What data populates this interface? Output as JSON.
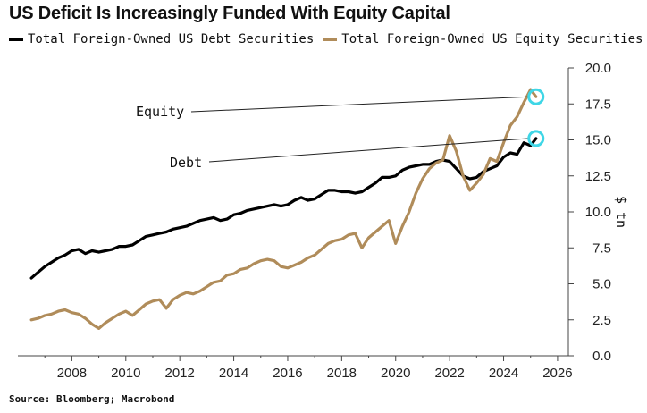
{
  "title": "US Deficit Is Increasingly Funded With Equity Capital",
  "source": "Source: Bloomberg; Macrobond",
  "colors": {
    "debt": "#000000",
    "equity": "#b08c5a",
    "marker": "#3fd6e6"
  },
  "chart_data": {
    "type": "line",
    "title": "US Deficit Is Increasingly Funded With Equity Capital",
    "xlabel": "",
    "ylabel": "$ tn",
    "xlim": [
      2006.0,
      2026.4
    ],
    "ylim": [
      0,
      20
    ],
    "x_ticks": [
      "2008",
      "2010",
      "2012",
      "2014",
      "2016",
      "2018",
      "2020",
      "2022",
      "2024",
      "2026"
    ],
    "y_ticks": [
      "0.0",
      "2.5",
      "5.0",
      "7.5",
      "10.0",
      "12.5",
      "15.0",
      "17.5",
      "20.0"
    ],
    "grid": false,
    "legend_position": "top",
    "annotations": [
      "Equity",
      "Debt"
    ],
    "series": [
      {
        "name": "Total Foreign-Owned US Debt Securities",
        "color": "#000000",
        "points": [
          [
            2006.5,
            5.4
          ],
          [
            2006.75,
            5.8
          ],
          [
            2007.0,
            6.2
          ],
          [
            2007.25,
            6.5
          ],
          [
            2007.5,
            6.8
          ],
          [
            2007.75,
            7.0
          ],
          [
            2008.0,
            7.3
          ],
          [
            2008.25,
            7.4
          ],
          [
            2008.5,
            7.1
          ],
          [
            2008.75,
            7.3
          ],
          [
            2009.0,
            7.2
          ],
          [
            2009.25,
            7.3
          ],
          [
            2009.5,
            7.4
          ],
          [
            2009.75,
            7.6
          ],
          [
            2010.0,
            7.6
          ],
          [
            2010.25,
            7.7
          ],
          [
            2010.5,
            8.0
          ],
          [
            2010.75,
            8.3
          ],
          [
            2011.0,
            8.4
          ],
          [
            2011.25,
            8.5
          ],
          [
            2011.5,
            8.6
          ],
          [
            2011.75,
            8.8
          ],
          [
            2012.0,
            8.9
          ],
          [
            2012.25,
            9.0
          ],
          [
            2012.5,
            9.2
          ],
          [
            2012.75,
            9.4
          ],
          [
            2013.0,
            9.5
          ],
          [
            2013.25,
            9.6
          ],
          [
            2013.5,
            9.4
          ],
          [
            2013.75,
            9.5
          ],
          [
            2014.0,
            9.8
          ],
          [
            2014.25,
            9.9
          ],
          [
            2014.5,
            10.1
          ],
          [
            2014.75,
            10.2
          ],
          [
            2015.0,
            10.3
          ],
          [
            2015.25,
            10.4
          ],
          [
            2015.5,
            10.5
          ],
          [
            2015.75,
            10.4
          ],
          [
            2016.0,
            10.5
          ],
          [
            2016.25,
            10.8
          ],
          [
            2016.5,
            11.0
          ],
          [
            2016.75,
            10.8
          ],
          [
            2017.0,
            10.9
          ],
          [
            2017.25,
            11.2
          ],
          [
            2017.5,
            11.5
          ],
          [
            2017.75,
            11.5
          ],
          [
            2018.0,
            11.4
          ],
          [
            2018.25,
            11.4
          ],
          [
            2018.5,
            11.3
          ],
          [
            2018.75,
            11.4
          ],
          [
            2019.0,
            11.7
          ],
          [
            2019.25,
            12.0
          ],
          [
            2019.5,
            12.4
          ],
          [
            2019.75,
            12.4
          ],
          [
            2020.0,
            12.5
          ],
          [
            2020.25,
            12.9
          ],
          [
            2020.5,
            13.1
          ],
          [
            2020.75,
            13.2
          ],
          [
            2021.0,
            13.3
          ],
          [
            2021.25,
            13.3
          ],
          [
            2021.5,
            13.5
          ],
          [
            2021.75,
            13.6
          ],
          [
            2022.0,
            13.5
          ],
          [
            2022.25,
            13.0
          ],
          [
            2022.5,
            12.5
          ],
          [
            2022.75,
            12.3
          ],
          [
            2023.0,
            12.4
          ],
          [
            2023.25,
            12.8
          ],
          [
            2023.5,
            13.0
          ],
          [
            2023.75,
            13.2
          ],
          [
            2024.0,
            13.8
          ],
          [
            2024.25,
            14.1
          ],
          [
            2024.5,
            14.0
          ],
          [
            2024.75,
            14.8
          ],
          [
            2025.0,
            14.6
          ],
          [
            2025.2,
            15.1
          ]
        ]
      },
      {
        "name": "Total Foreign-Owned US Equity Securities",
        "color": "#b08c5a",
        "points": [
          [
            2006.5,
            2.5
          ],
          [
            2006.75,
            2.6
          ],
          [
            2007.0,
            2.8
          ],
          [
            2007.25,
            2.9
          ],
          [
            2007.5,
            3.1
          ],
          [
            2007.75,
            3.2
          ],
          [
            2008.0,
            3.0
          ],
          [
            2008.25,
            2.9
          ],
          [
            2008.5,
            2.6
          ],
          [
            2008.75,
            2.2
          ],
          [
            2009.0,
            1.9
          ],
          [
            2009.25,
            2.3
          ],
          [
            2009.5,
            2.6
          ],
          [
            2009.75,
            2.9
          ],
          [
            2010.0,
            3.1
          ],
          [
            2010.25,
            2.8
          ],
          [
            2010.5,
            3.2
          ],
          [
            2010.75,
            3.6
          ],
          [
            2011.0,
            3.8
          ],
          [
            2011.25,
            3.9
          ],
          [
            2011.5,
            3.3
          ],
          [
            2011.75,
            3.9
          ],
          [
            2012.0,
            4.2
          ],
          [
            2012.25,
            4.4
          ],
          [
            2012.5,
            4.3
          ],
          [
            2012.75,
            4.5
          ],
          [
            2013.0,
            4.8
          ],
          [
            2013.25,
            5.1
          ],
          [
            2013.5,
            5.2
          ],
          [
            2013.75,
            5.6
          ],
          [
            2014.0,
            5.7
          ],
          [
            2014.25,
            6.0
          ],
          [
            2014.5,
            6.1
          ],
          [
            2014.75,
            6.4
          ],
          [
            2015.0,
            6.6
          ],
          [
            2015.25,
            6.7
          ],
          [
            2015.5,
            6.6
          ],
          [
            2015.75,
            6.2
          ],
          [
            2016.0,
            6.1
          ],
          [
            2016.25,
            6.3
          ],
          [
            2016.5,
            6.5
          ],
          [
            2016.75,
            6.8
          ],
          [
            2017.0,
            7.0
          ],
          [
            2017.25,
            7.4
          ],
          [
            2017.5,
            7.8
          ],
          [
            2017.75,
            8.0
          ],
          [
            2018.0,
            8.1
          ],
          [
            2018.25,
            8.4
          ],
          [
            2018.5,
            8.5
          ],
          [
            2018.75,
            7.5
          ],
          [
            2019.0,
            8.2
          ],
          [
            2019.25,
            8.6
          ],
          [
            2019.5,
            9.0
          ],
          [
            2019.75,
            9.4
          ],
          [
            2020.0,
            7.8
          ],
          [
            2020.25,
            9.0
          ],
          [
            2020.5,
            10.0
          ],
          [
            2020.75,
            11.3
          ],
          [
            2021.0,
            12.3
          ],
          [
            2021.25,
            13.0
          ],
          [
            2021.5,
            13.4
          ],
          [
            2021.75,
            13.6
          ],
          [
            2022.0,
            15.3
          ],
          [
            2022.25,
            14.2
          ],
          [
            2022.5,
            12.5
          ],
          [
            2022.75,
            11.5
          ],
          [
            2023.0,
            12.0
          ],
          [
            2023.25,
            12.6
          ],
          [
            2023.5,
            13.7
          ],
          [
            2023.75,
            13.5
          ],
          [
            2024.0,
            14.8
          ],
          [
            2024.25,
            16.0
          ],
          [
            2024.5,
            16.6
          ],
          [
            2024.75,
            17.6
          ],
          [
            2025.0,
            18.5
          ],
          [
            2025.2,
            18.0
          ]
        ]
      }
    ]
  }
}
